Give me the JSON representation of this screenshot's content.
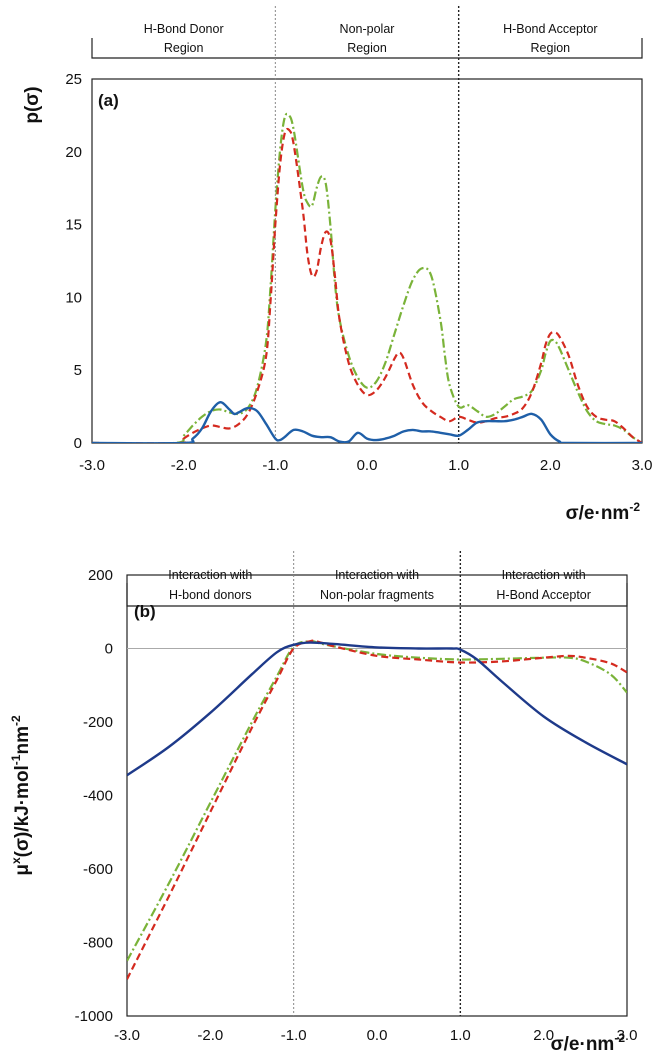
{
  "chart_data": [
    {
      "type": "line",
      "panel_label": "(a)",
      "ylabel": "p(σ)",
      "xlabel": "σ/e·nm",
      "xlabel_sup": "-2",
      "xlim": [
        -3.0,
        3.0
      ],
      "ylim": [
        0,
        25
      ],
      "x_ticks": [
        "-3.0",
        "-2.0",
        "-1.0",
        "0.0",
        "1.0",
        "2.0",
        "3.0"
      ],
      "y_ticks": [
        "0",
        "5",
        "10",
        "15",
        "20",
        "25"
      ],
      "regions": [
        {
          "lines": [
            "H-Bond Donor",
            "Region"
          ]
        },
        {
          "lines": [
            "Non-polar",
            "Region"
          ]
        },
        {
          "lines": [
            "H-Bond Acceptor",
            "Region"
          ]
        }
      ],
      "boundaries": [
        -1.0,
        1.0
      ],
      "series": [
        {
          "color": "#1f5fa8",
          "style": "solid",
          "x": [
            -3.0,
            -2.0,
            -1.9,
            -1.8,
            -1.7,
            -1.6,
            -1.5,
            -1.45,
            -1.4,
            -1.3,
            -1.2,
            -1.1,
            -1.0,
            -0.95,
            -0.9,
            -0.8,
            -0.7,
            -0.6,
            -0.5,
            -0.4,
            -0.3,
            -0.2,
            -0.1,
            0.0,
            0.1,
            0.2,
            0.3,
            0.4,
            0.5,
            0.6,
            0.7,
            0.8,
            0.9,
            1.0,
            1.1,
            1.2,
            1.3,
            1.4,
            1.5,
            1.6,
            1.7,
            1.8,
            1.9,
            2.0,
            2.1,
            2.2,
            3.0
          ],
          "y": [
            0,
            0,
            0.3,
            1.0,
            2.2,
            2.8,
            2.3,
            2.0,
            2.1,
            2.4,
            2.2,
            1.3,
            0.3,
            0.2,
            0.4,
            0.9,
            0.8,
            0.5,
            0.4,
            0.4,
            0.1,
            0.1,
            0.7,
            0.3,
            0.2,
            0.3,
            0.5,
            0.8,
            0.9,
            0.8,
            0.8,
            0.7,
            0.6,
            0.5,
            0.9,
            1.4,
            1.5,
            1.5,
            1.5,
            1.6,
            1.8,
            2.0,
            1.6,
            0.6,
            0.1,
            0,
            0
          ]
        },
        {
          "color": "#d42a1f",
          "style": "dashed",
          "x": [
            -3.0,
            -2.05,
            -2.0,
            -1.9,
            -1.8,
            -1.7,
            -1.6,
            -1.5,
            -1.4,
            -1.3,
            -1.2,
            -1.1,
            -1.05,
            -1.0,
            -0.95,
            -0.9,
            -0.85,
            -0.8,
            -0.7,
            -0.65,
            -0.6,
            -0.55,
            -0.5,
            -0.45,
            -0.4,
            -0.35,
            -0.3,
            -0.2,
            -0.1,
            0.0,
            0.1,
            0.2,
            0.3,
            0.35,
            0.4,
            0.5,
            0.6,
            0.7,
            0.8,
            0.9,
            1.0,
            1.1,
            1.2,
            1.3,
            1.4,
            1.5,
            1.6,
            1.7,
            1.8,
            1.9,
            1.95,
            2.0,
            2.05,
            2.1,
            2.2,
            2.3,
            2.4,
            2.5,
            2.6,
            2.7,
            2.8,
            2.9,
            3.0
          ],
          "y": [
            0,
            0,
            0.3,
            0.7,
            1.0,
            1.2,
            1.1,
            1.0,
            1.3,
            2.0,
            3.5,
            6.0,
            10.0,
            15.0,
            19.0,
            21.2,
            21.5,
            20.5,
            16.0,
            13.0,
            11.5,
            11.8,
            13.5,
            14.5,
            14.0,
            11.5,
            8.5,
            5.5,
            4.0,
            3.3,
            3.6,
            4.5,
            5.8,
            6.2,
            5.8,
            4.0,
            2.8,
            2.2,
            1.8,
            1.5,
            1.8,
            1.6,
            1.4,
            1.5,
            1.7,
            1.8,
            2.0,
            2.4,
            3.5,
            5.5,
            6.8,
            7.5,
            7.6,
            7.3,
            6.0,
            4.0,
            2.5,
            1.8,
            1.6,
            1.5,
            1.0,
            0.4,
            0
          ]
        },
        {
          "color": "#7ab339",
          "style": "dashdot",
          "x": [
            -3.0,
            -2.1,
            -2.0,
            -1.9,
            -1.8,
            -1.7,
            -1.6,
            -1.5,
            -1.4,
            -1.3,
            -1.2,
            -1.1,
            -1.05,
            -1.0,
            -0.95,
            -0.9,
            -0.85,
            -0.8,
            -0.7,
            -0.65,
            -0.6,
            -0.55,
            -0.5,
            -0.45,
            -0.4,
            -0.35,
            -0.3,
            -0.2,
            -0.1,
            0.0,
            0.1,
            0.2,
            0.3,
            0.4,
            0.5,
            0.6,
            0.7,
            0.8,
            0.85,
            0.9,
            1.0,
            1.1,
            1.2,
            1.3,
            1.4,
            1.5,
            1.6,
            1.7,
            1.8,
            1.9,
            1.95,
            2.0,
            2.05,
            2.1,
            2.2,
            2.3,
            2.4,
            2.5,
            2.6,
            2.7,
            2.8,
            2.9,
            3.0
          ],
          "y": [
            0,
            0,
            0.5,
            1.2,
            1.8,
            2.2,
            2.3,
            2.1,
            2.0,
            2.4,
            3.8,
            7.0,
            11.0,
            16.0,
            20.0,
            22.3,
            22.5,
            21.5,
            17.5,
            16.5,
            16.3,
            17.5,
            18.3,
            17.8,
            15.0,
            11.0,
            8.5,
            6.0,
            4.5,
            3.8,
            4.2,
            5.5,
            7.5,
            9.5,
            11.2,
            12.0,
            11.5,
            8.5,
            6.0,
            4.0,
            2.5,
            2.6,
            2.2,
            1.8,
            2.0,
            2.5,
            3.0,
            3.2,
            3.6,
            5.0,
            6.2,
            7.0,
            7.0,
            6.5,
            5.0,
            3.5,
            2.2,
            1.5,
            1.3,
            1.2,
            0.9,
            0.4,
            0
          ]
        }
      ]
    },
    {
      "type": "line",
      "panel_label": "(b)",
      "ylabel": "μ",
      "ylabel_sup": "x",
      "ylabel_rest": "(σ)/kJ·mol",
      "ylabel_sup2": "-1",
      "ylabel_rest2": "nm",
      "ylabel_sup3": "-2",
      "xlabel": "σ/e·nm",
      "xlabel_sup": "-2",
      "xlim": [
        -3.0,
        3.0
      ],
      "ylim": [
        -1000,
        200
      ],
      "x_ticks": [
        "-3.0",
        "-2.0",
        "-1.0",
        "0.0",
        "1.0",
        "2.0",
        "3.0"
      ],
      "y_ticks": [
        "-1000",
        "-800",
        "-600",
        "-400",
        "-200",
        "0",
        "200"
      ],
      "regions": [
        {
          "lines": [
            "Interaction with",
            "H-bond donors"
          ]
        },
        {
          "lines": [
            "Interaction with",
            "Non-polar fragments"
          ]
        },
        {
          "lines": [
            "Interaction with",
            "H-Bond Acceptor"
          ]
        }
      ],
      "boundaries": [
        -1.0,
        1.0
      ],
      "series": [
        {
          "color": "#1e3a8a",
          "style": "solid",
          "x": [
            -3.0,
            -2.5,
            -2.0,
            -1.5,
            -1.2,
            -1.0,
            -0.8,
            -0.5,
            0.0,
            0.5,
            0.9,
            1.0,
            1.2,
            1.5,
            2.0,
            2.5,
            3.0
          ],
          "y": [
            -345,
            -268,
            -175,
            -70,
            -10,
            10,
            16,
            12,
            3,
            0,
            0,
            -3,
            -30,
            -90,
            -185,
            -255,
            -315
          ]
        },
        {
          "color": "#d42a1f",
          "style": "dashed",
          "x": [
            -3.0,
            -2.5,
            -2.0,
            -1.5,
            -1.2,
            -1.0,
            -0.8,
            -0.7,
            -0.5,
            0.0,
            0.5,
            1.0,
            1.5,
            2.0,
            2.3,
            2.5,
            2.8,
            3.0
          ],
          "y": [
            -900,
            -675,
            -445,
            -215,
            -85,
            0,
            20,
            18,
            5,
            -20,
            -30,
            -38,
            -35,
            -25,
            -20,
            -25,
            -40,
            -65
          ]
        },
        {
          "color": "#7ab339",
          "style": "dashdot",
          "x": [
            -3.0,
            -2.5,
            -2.0,
            -1.5,
            -1.2,
            -1.0,
            -0.8,
            -0.7,
            -0.5,
            0.0,
            0.5,
            1.0,
            1.5,
            2.0,
            2.3,
            2.5,
            2.8,
            3.0
          ],
          "y": [
            -850,
            -640,
            -420,
            -200,
            -75,
            5,
            20,
            15,
            5,
            -15,
            -25,
            -30,
            -28,
            -25,
            -25,
            -35,
            -70,
            -120
          ]
        }
      ]
    }
  ]
}
